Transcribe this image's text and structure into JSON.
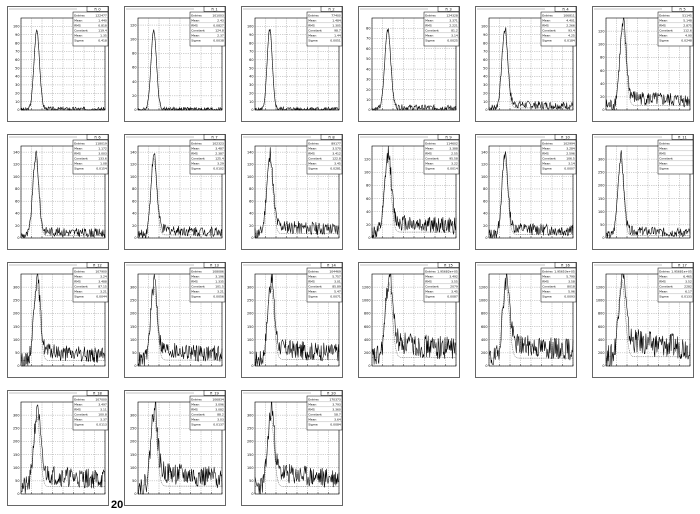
{
  "page": {
    "footer_label": "20"
  },
  "style": {
    "line_color": "#000000",
    "frame_color": "#000000",
    "grid_color": "#000000"
  },
  "chart_data": [
    {
      "type": "line",
      "title": "fi_0",
      "xlim": [
        0,
        80
      ],
      "ylim": [
        0,
        110
      ],
      "y_ticks": [
        0,
        10,
        20,
        30,
        40,
        50,
        60,
        70,
        80,
        90,
        100
      ],
      "peak": {
        "x": 15,
        "height": 95,
        "width": 2.6
      },
      "background": 1,
      "stats": {
        "Entries": "122477",
        "Mean": "1.440",
        "RMS": "0.818",
        "Constant": "119.4",
        "Mean2": "1.35",
        "Sigma": "0.418"
      }
    },
    {
      "type": "line",
      "title": "fi_1",
      "xlim": [
        0,
        80
      ],
      "ylim": [
        0,
        130
      ],
      "y_ticks": [
        0,
        20,
        40,
        60,
        80,
        100,
        120
      ],
      "peak": {
        "x": 15,
        "height": 112,
        "width": 2.6
      },
      "background": 1,
      "stats": {
        "Entries": "101003",
        "Mean": "2.43",
        "RMS": "0.0827",
        "Constant": "124.8",
        "Mean2": "2.37",
        "Sigma": "0.0038"
      }
    },
    {
      "type": "line",
      "title": "fi_2",
      "xlim": [
        0,
        80
      ],
      "ylim": [
        0,
        110
      ],
      "y_ticks": [
        0,
        10,
        20,
        30,
        40,
        50,
        60,
        70,
        80,
        90,
        100
      ],
      "peak": {
        "x": 14,
        "height": 96,
        "width": 2.4
      },
      "background": 1,
      "stats": {
        "Entries": "77400",
        "Mean": "1.484",
        "RMS": "1.305",
        "Constant": "98.7",
        "Mean2": "1.44",
        "Sigma": "0.0051"
      }
    },
    {
      "type": "line",
      "title": "fi_3",
      "xlim": [
        0,
        80
      ],
      "ylim": [
        0,
        90
      ],
      "y_ticks": [
        0,
        10,
        20,
        30,
        40,
        50,
        60,
        70,
        80
      ],
      "peak": {
        "x": 15,
        "height": 78,
        "width": 2.8
      },
      "background": 2,
      "stats": {
        "Entries": "124328",
        "Mean": "3.371",
        "RMS": "2.221",
        "Constant": "81.2",
        "Mean2": "3.14",
        "Sigma": "0.0025"
      }
    },
    {
      "type": "line",
      "title": "fi_4",
      "xlim": [
        0,
        80
      ],
      "ylim": [
        0,
        110
      ],
      "y_ticks": [
        0,
        10,
        20,
        30,
        40,
        50,
        60,
        70,
        80,
        90,
        100
      ],
      "peak": {
        "x": 15,
        "height": 92,
        "width": 2.8
      },
      "background": 5,
      "stats": {
        "Entries": "106811",
        "Mean": "4.401",
        "RMS": "2.266",
        "Constant": "93.4",
        "Mean2": "4.25",
        "Sigma": "0.0184"
      }
    },
    {
      "type": "line",
      "title": "fi_5",
      "xlim": [
        0,
        80
      ],
      "ylim": [
        0,
        140
      ],
      "y_ticks": [
        0,
        20,
        40,
        60,
        80,
        100,
        120
      ],
      "peak": {
        "x": 16,
        "height": 118,
        "width": 3.0
      },
      "background": 14,
      "stats": {
        "Entries": "51145",
        "Mean": "5.148",
        "RMS": "2.875",
        "Constant": "112.6",
        "Mean2": "4.90",
        "Sigma": "0.0248"
      }
    },
    {
      "type": "line",
      "title": "fi_6",
      "xlim": [
        0,
        80
      ],
      "ylim": [
        0,
        150
      ],
      "y_ticks": [
        0,
        20,
        40,
        60,
        80,
        100,
        120,
        140
      ],
      "peak": {
        "x": 14,
        "height": 128,
        "width": 2.8
      },
      "background": 8,
      "stats": {
        "Entries": "118019",
        "Mean": "1.172",
        "RMS": "3.003",
        "Constant": "133.6",
        "Mean2": "1.08",
        "Sigma": "0.0154"
      }
    },
    {
      "type": "line",
      "title": "fi_7",
      "xlim": [
        0,
        80
      ],
      "ylim": [
        0,
        150
      ],
      "y_ticks": [
        0,
        20,
        40,
        60,
        80,
        100,
        120,
        140
      ],
      "peak": {
        "x": 15,
        "height": 125,
        "width": 2.8
      },
      "background": 10,
      "stats": {
        "Entries": "102323",
        "Mean": "3.487",
        "RMS": "2.387",
        "Constant": "125.4",
        "Mean2": "3.29",
        "Sigma": "0.0102"
      }
    },
    {
      "type": "line",
      "title": "fi_8",
      "xlim": [
        0,
        80
      ],
      "ylim": [
        0,
        150
      ],
      "y_ticks": [
        0,
        20,
        40,
        60,
        80,
        100,
        120,
        140
      ],
      "peak": {
        "x": 14,
        "height": 120,
        "width": 3.0
      },
      "background": 14,
      "stats": {
        "Entries": "89177",
        "Mean": "3.570",
        "RMS": "3.412",
        "Constant": "122.8",
        "Mean2": "3.45",
        "Sigma": "0.0281"
      }
    },
    {
      "type": "line",
      "title": "fi_9",
      "xlim": [
        0,
        80
      ],
      "ylim": [
        0,
        140
      ],
      "y_ticks": [
        0,
        20,
        40,
        60,
        80,
        100,
        120
      ],
      "peak": {
        "x": 15,
        "height": 112,
        "width": 3.0
      },
      "background": 18,
      "stats": {
        "Entries": "114602",
        "Mean": "3.388",
        "RMS": "2.55",
        "Constant": "95.58",
        "Mean2": "3.22",
        "Sigma": "0.0014"
      }
    },
    {
      "type": "line",
      "title": "fi_10",
      "xlim": [
        0,
        80
      ],
      "ylim": [
        0,
        150
      ],
      "y_ticks": [
        0,
        20,
        40,
        60,
        80,
        100,
        120,
        140
      ],
      "peak": {
        "x": 15,
        "height": 124,
        "width": 2.8
      },
      "background": 12,
      "stats": {
        "Entries": "102994",
        "Mean": "3.284",
        "RMS": "2.596",
        "Constant": "106.5",
        "Mean2": "3.14",
        "Sigma": "0.0007"
      }
    },
    {
      "type": "line",
      "title": "fi_11",
      "xlim": [
        0,
        80
      ],
      "ylim": [
        0,
        350
      ],
      "y_ticks": [
        0,
        50,
        100,
        150,
        200,
        250,
        300
      ],
      "peak": {
        "x": 14,
        "height": 290,
        "width": 2.8
      },
      "background": 20,
      "stats": {
        "Entries": "",
        "Mean": "",
        "RMS": "",
        "Constant": "",
        "Mean2": "",
        "Sigma": ""
      }
    },
    {
      "type": "line",
      "title": "fi_12",
      "xlim": [
        0,
        80
      ],
      "ylim": [
        0,
        350
      ],
      "y_ticks": [
        0,
        50,
        100,
        150,
        200,
        250,
        300
      ],
      "peak": {
        "x": 15,
        "height": 300,
        "width": 3.0
      },
      "background": 40,
      "stats": {
        "Entries": "107900",
        "Mean": "3.24",
        "RMS": "3.488",
        "Constant": "87.15",
        "Mean2": "3.21",
        "Sigma": "0.0044"
      }
    },
    {
      "type": "line",
      "title": "fi_13",
      "xlim": [
        0,
        80
      ],
      "ylim": [
        0,
        350
      ],
      "y_ticks": [
        0,
        50,
        100,
        150,
        200,
        250,
        300
      ],
      "peak": {
        "x": 15,
        "height": 280,
        "width": 3.0
      },
      "background": 45,
      "stats": {
        "Entries": "108086",
        "Mean": "3.196",
        "RMS": "1.335",
        "Constant": "101.5",
        "Mean2": "3.21",
        "Sigma": "0.0056"
      }
    },
    {
      "type": "line",
      "title": "fi_14",
      "xlim": [
        0,
        80
      ],
      "ylim": [
        0,
        350
      ],
      "y_ticks": [
        0,
        50,
        100,
        150,
        200,
        250,
        300
      ],
      "peak": {
        "x": 15,
        "height": 285,
        "width": 3.0
      },
      "background": 50,
      "stats": {
        "Entries": "104469",
        "Mean": "5.757",
        "RMS": "3.01",
        "Constant": "85.89",
        "Mean2": "5.47",
        "Sigma": "0.0071"
      }
    },
    {
      "type": "line",
      "title": "fi_15",
      "xlim": [
        0,
        80
      ],
      "ylim": [
        0,
        1400
      ],
      "y_ticks": [
        0,
        200,
        400,
        600,
        800,
        1000,
        1200
      ],
      "peak": {
        "x": 16,
        "height": 1150,
        "width": 3.2
      },
      "background": 260,
      "stats": {
        "Entries": "1.95682e+05",
        "Mean": "3.492",
        "RMS": "3.55",
        "Constant": "2079",
        "Mean2": "3.45",
        "Sigma": "0.0087"
      }
    },
    {
      "type": "line",
      "title": "fi_16",
      "xlim": [
        0,
        80
      ],
      "ylim": [
        0,
        1400
      ],
      "y_ticks": [
        0,
        200,
        400,
        600,
        800,
        1000,
        1200
      ],
      "peak": {
        "x": 16,
        "height": 1120,
        "width": 3.2
      },
      "background": 240,
      "stats": {
        "Entries": "1.95653e+05",
        "Mean": "5.790",
        "RMS": "3.58",
        "Constant": "8018",
        "Mean2": "5.96",
        "Sigma": "0.0093"
      }
    },
    {
      "type": "line",
      "title": "fi_17",
      "xlim": [
        0,
        80
      ],
      "ylim": [
        0,
        1400
      ],
      "y_ticks": [
        0,
        200,
        400,
        600,
        800,
        1000,
        1200
      ],
      "peak": {
        "x": 15,
        "height": 1180,
        "width": 3.2
      },
      "background": 280,
      "stats": {
        "Entries": "1.95681e+05",
        "Mean": "6.465",
        "RMS": "3.52",
        "Constant": "2282",
        "Mean2": "6.17",
        "Sigma": "0.0133"
      }
    },
    {
      "type": "line",
      "title": "fi_18",
      "xlim": [
        0,
        80
      ],
      "ylim": [
        0,
        350
      ],
      "y_ticks": [
        0,
        50,
        100,
        150,
        200,
        250,
        300
      ],
      "peak": {
        "x": 15,
        "height": 270,
        "width": 3.0
      },
      "background": 55,
      "stats": {
        "Entries": "107000",
        "Mean": "3.497",
        "RMS": "3.11",
        "Constant": "100.8",
        "Mean2": "3.37",
        "Sigma": "0.0113"
      }
    },
    {
      "type": "line",
      "title": "fi_19",
      "xlim": [
        0,
        80
      ],
      "ylim": [
        0,
        350
      ],
      "y_ticks": [
        0,
        50,
        100,
        150,
        200,
        250,
        300
      ],
      "peak": {
        "x": 15,
        "height": 275,
        "width": 3.0
      },
      "background": 60,
      "stats": {
        "Entries": "106834",
        "Mean": "3.096",
        "RMS": "3.082",
        "Constant": "88.2",
        "Mean2": "3.03",
        "Sigma": "0.0137"
      }
    },
    {
      "type": "line",
      "title": "fi_20",
      "xlim": [
        0,
        80
      ],
      "ylim": [
        0,
        350
      ],
      "y_ticks": [
        0,
        50,
        100,
        150,
        200,
        250,
        300
      ],
      "peak": {
        "x": 15,
        "height": 268,
        "width": 3.0
      },
      "background": 58,
      "stats": {
        "Entries": "170373",
        "Mean": "3.793",
        "RMS": "3.360",
        "Constant": "58.7",
        "Mean2": "3.64",
        "Sigma": "0.0084"
      }
    }
  ]
}
